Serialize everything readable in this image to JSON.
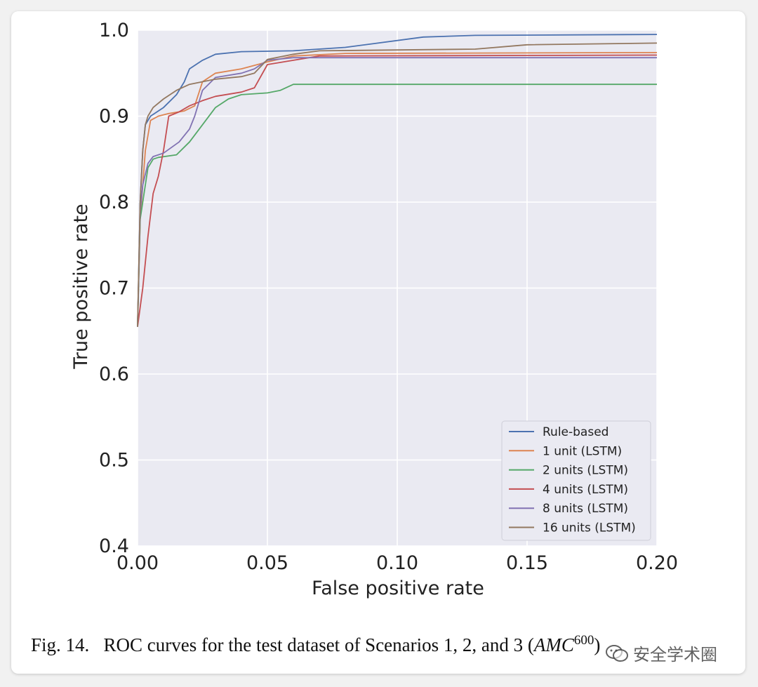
{
  "chart_data": {
    "type": "line",
    "xlabel": "False positive rate",
    "ylabel": "True positive rate",
    "xlim": [
      0.0,
      0.2
    ],
    "ylim": [
      0.4,
      1.0
    ],
    "xticks": [
      "0.00",
      "0.05",
      "0.10",
      "0.15",
      "0.20"
    ],
    "yticks": [
      "0.4",
      "0.5",
      "0.6",
      "0.7",
      "0.8",
      "0.9",
      "1.0"
    ],
    "grid": true,
    "legend_position": "lower-right",
    "series": [
      {
        "name": "Rule-based",
        "color": "#4c72b0",
        "points": [
          [
            0.0,
            0.655
          ],
          [
            0.001,
            0.8
          ],
          [
            0.002,
            0.86
          ],
          [
            0.003,
            0.89
          ],
          [
            0.005,
            0.9
          ],
          [
            0.01,
            0.91
          ],
          [
            0.015,
            0.925
          ],
          [
            0.018,
            0.94
          ],
          [
            0.02,
            0.955
          ],
          [
            0.025,
            0.965
          ],
          [
            0.03,
            0.972
          ],
          [
            0.04,
            0.975
          ],
          [
            0.06,
            0.976
          ],
          [
            0.08,
            0.98
          ],
          [
            0.09,
            0.984
          ],
          [
            0.11,
            0.992
          ],
          [
            0.13,
            0.994
          ],
          [
            0.2,
            0.995
          ]
        ]
      },
      {
        "name": "1 unit (LSTM)",
        "color": "#dd8452",
        "points": [
          [
            0.0,
            0.655
          ],
          [
            0.001,
            0.78
          ],
          [
            0.002,
            0.82
          ],
          [
            0.003,
            0.86
          ],
          [
            0.005,
            0.895
          ],
          [
            0.008,
            0.9
          ],
          [
            0.012,
            0.903
          ],
          [
            0.018,
            0.906
          ],
          [
            0.022,
            0.912
          ],
          [
            0.025,
            0.94
          ],
          [
            0.03,
            0.95
          ],
          [
            0.04,
            0.955
          ],
          [
            0.05,
            0.963
          ],
          [
            0.06,
            0.97
          ],
          [
            0.08,
            0.973
          ],
          [
            0.2,
            0.974
          ]
        ]
      },
      {
        "name": "2 units (LSTM)",
        "color": "#55a868",
        "points": [
          [
            0.0,
            0.655
          ],
          [
            0.001,
            0.78
          ],
          [
            0.002,
            0.8
          ],
          [
            0.003,
            0.82
          ],
          [
            0.004,
            0.84
          ],
          [
            0.006,
            0.85
          ],
          [
            0.008,
            0.852
          ],
          [
            0.015,
            0.855
          ],
          [
            0.02,
            0.87
          ],
          [
            0.025,
            0.89
          ],
          [
            0.03,
            0.91
          ],
          [
            0.035,
            0.92
          ],
          [
            0.04,
            0.925
          ],
          [
            0.05,
            0.927
          ],
          [
            0.055,
            0.93
          ],
          [
            0.06,
            0.937
          ],
          [
            0.2,
            0.937
          ]
        ]
      },
      {
        "name": "4 units (LSTM)",
        "color": "#c44e52",
        "points": [
          [
            0.0,
            0.655
          ],
          [
            0.002,
            0.7
          ],
          [
            0.004,
            0.76
          ],
          [
            0.006,
            0.81
          ],
          [
            0.008,
            0.83
          ],
          [
            0.01,
            0.86
          ],
          [
            0.012,
            0.9
          ],
          [
            0.016,
            0.905
          ],
          [
            0.02,
            0.912
          ],
          [
            0.025,
            0.918
          ],
          [
            0.03,
            0.923
          ],
          [
            0.04,
            0.928
          ],
          [
            0.045,
            0.933
          ],
          [
            0.05,
            0.96
          ],
          [
            0.06,
            0.965
          ],
          [
            0.07,
            0.97
          ],
          [
            0.2,
            0.971
          ]
        ]
      },
      {
        "name": "8 units (LSTM)",
        "color": "#8172b2",
        "points": [
          [
            0.0,
            0.655
          ],
          [
            0.001,
            0.79
          ],
          [
            0.002,
            0.82
          ],
          [
            0.004,
            0.845
          ],
          [
            0.006,
            0.853
          ],
          [
            0.01,
            0.857
          ],
          [
            0.016,
            0.87
          ],
          [
            0.02,
            0.885
          ],
          [
            0.022,
            0.9
          ],
          [
            0.025,
            0.93
          ],
          [
            0.03,
            0.945
          ],
          [
            0.04,
            0.95
          ],
          [
            0.045,
            0.955
          ],
          [
            0.05,
            0.965
          ],
          [
            0.06,
            0.968
          ],
          [
            0.2,
            0.968
          ]
        ]
      },
      {
        "name": "16 units (LSTM)",
        "color": "#937860",
        "points": [
          [
            0.0,
            0.655
          ],
          [
            0.001,
            0.8
          ],
          [
            0.002,
            0.86
          ],
          [
            0.003,
            0.89
          ],
          [
            0.004,
            0.9
          ],
          [
            0.006,
            0.91
          ],
          [
            0.01,
            0.92
          ],
          [
            0.015,
            0.93
          ],
          [
            0.02,
            0.937
          ],
          [
            0.025,
            0.94
          ],
          [
            0.03,
            0.943
          ],
          [
            0.04,
            0.946
          ],
          [
            0.045,
            0.95
          ],
          [
            0.05,
            0.966
          ],
          [
            0.06,
            0.972
          ],
          [
            0.07,
            0.976
          ],
          [
            0.13,
            0.978
          ],
          [
            0.15,
            0.983
          ],
          [
            0.2,
            0.985
          ]
        ]
      }
    ]
  },
  "caption": {
    "prefix": "Fig. 14.",
    "text": "ROC curves for the test dataset of Scenarios 1, 2, and 3 (",
    "math": "AMC",
    "sup": "600",
    "suffix": ")"
  },
  "watermark": {
    "icon": "wechat-icon",
    "text": "安全学术圈"
  }
}
